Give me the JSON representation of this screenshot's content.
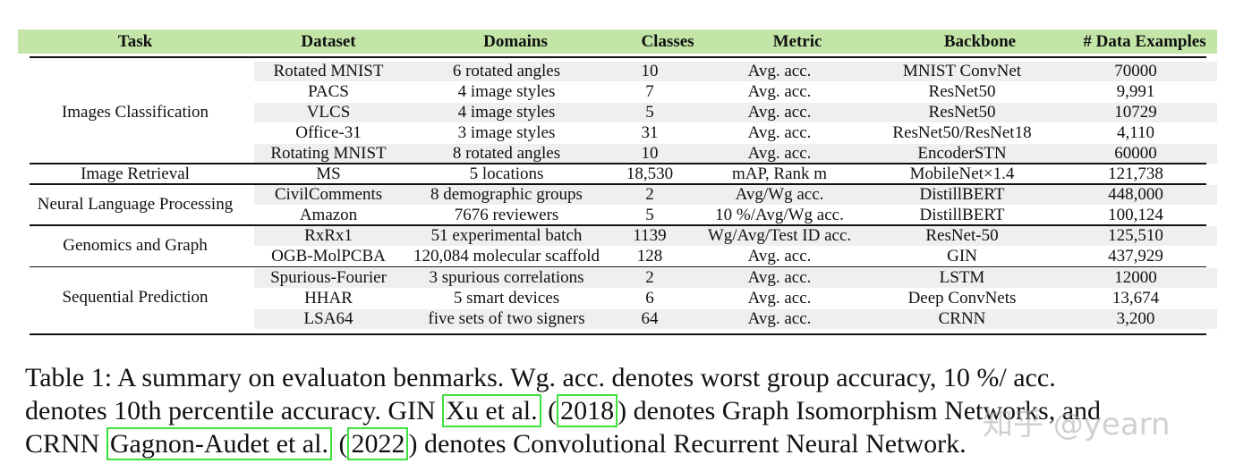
{
  "table": {
    "columns": [
      "Task",
      "Dataset",
      "Domains",
      "Classes",
      "Metric",
      "Backbone",
      "# Data Examples"
    ],
    "groups": [
      {
        "task": "Images Classification",
        "rows": [
          [
            "Rotated MNIST",
            "6 rotated angles",
            "10",
            "Avg. acc.",
            "MNIST ConvNet",
            "70000"
          ],
          [
            "PACS",
            "4 image styles",
            "7",
            "Avg. acc.",
            "ResNet50",
            "9,991"
          ],
          [
            "VLCS",
            "4 image styles",
            "5",
            "Avg. acc.",
            "ResNet50",
            "10729"
          ],
          [
            "Office-31",
            "3 image styles",
            "31",
            "Avg. acc.",
            "ResNet50/ResNet18",
            "4,110"
          ],
          [
            "Rotating MNIST",
            "8 rotated angles",
            "10",
            "Avg. acc.",
            "EncoderSTN",
            "60000"
          ]
        ]
      },
      {
        "task": "Image Retrieval",
        "rows": [
          [
            "MS",
            "5 locations",
            "18,530",
            "mAP, Rank m",
            "MobileNet×1.4",
            "121,738"
          ]
        ]
      },
      {
        "task": "Neural Language Processing",
        "rows": [
          [
            "CivilComments",
            "8 demographic groups",
            "2",
            "Avg/Wg acc.",
            "DistillBERT",
            "448,000"
          ],
          [
            "Amazon",
            "7676 reviewers",
            "5",
            "10 %/Avg/Wg acc.",
            "DistillBERT",
            "100,124"
          ]
        ]
      },
      {
        "task": "Genomics and Graph",
        "rows": [
          [
            "RxRx1",
            "51 experimental batch",
            "1139",
            "Wg/Avg/Test ID acc.",
            "ResNet-50",
            "125,510"
          ],
          [
            "OGB-MolPCBA",
            "120,084 molecular scaffold",
            "128",
            "Avg. acc.",
            "GIN",
            "437,929"
          ]
        ]
      },
      {
        "task": "Sequential Prediction",
        "rows": [
          [
            "Spurious-Fourier",
            "3 spurious correlations",
            "2",
            "Avg. acc.",
            "LSTM",
            "12000"
          ],
          [
            "HHAR",
            "5 smart devices",
            "6",
            "Avg. acc.",
            "Deep ConvNets",
            "13,674"
          ],
          [
            "LSA64",
            "five sets of two signers",
            "64",
            "Avg. acc.",
            "CRNN",
            "3,200"
          ]
        ]
      }
    ]
  },
  "caption": {
    "l1": "Table 1: A summary on evaluaton benmarks. Wg. acc. denotes worst group accuracy, 10 %/ acc.",
    "l2a": "denotes 10th percentile accuracy. GIN ",
    "l2_cite1": "Xu et al.",
    "l2b": " (",
    "l2_cite2": "2018",
    "l2c": ") denotes Graph Isomorphism Networks, and",
    "l3a": "CRNN ",
    "l3_cite1": "Gagnon-Audet et al.",
    "l3b": " (",
    "l3_cite2": "2022",
    "l3c": ") denotes Convolutional Recurrent Neural Network."
  },
  "watermark": "知乎 @yearn",
  "colors": {
    "header_bg": "#c3e6a8",
    "stripe": "#efefef",
    "cite_box": "#3ee03e"
  }
}
